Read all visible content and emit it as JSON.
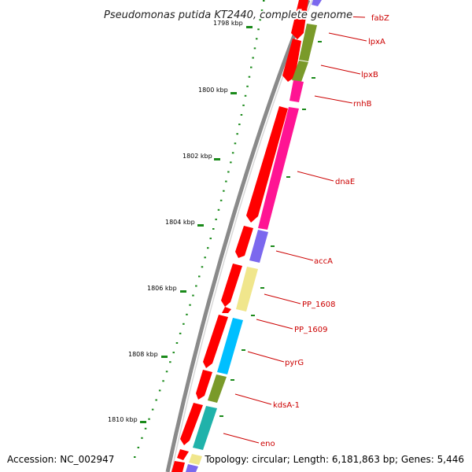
{
  "title": "Pseudomonas putida KT2440, complete genome",
  "footer": {
    "accession": "Accession: NC_002947",
    "topology": "Topology: circular; Length: 6,181,863 bp; Genes: 5,446"
  },
  "ticks": [
    {
      "kbp": 1798,
      "label": "1798 kbp"
    },
    {
      "kbp": 1800,
      "label": "1800 kbp"
    },
    {
      "kbp": 1802,
      "label": "1802 kbp"
    },
    {
      "kbp": 1804,
      "label": "1804 kbp"
    },
    {
      "kbp": 1806,
      "label": "1806 kbp"
    },
    {
      "kbp": 1808,
      "label": "1808 kbp"
    },
    {
      "kbp": 1810,
      "label": "1810 kbp"
    }
  ],
  "colors": {
    "forward": "#ff0000",
    "ticks": "#1a8a1a",
    "backbone": "#888888",
    "label": "#cc0000"
  },
  "genes": [
    {
      "name": "fabZ",
      "label": "fabZ",
      "color": "#7b68ee"
    },
    {
      "name": "lpxA",
      "label": "lpxA",
      "color": "#7a9a2a"
    },
    {
      "name": "lpxB",
      "label": "lpxB",
      "color": "#7a9a2a"
    },
    {
      "name": "rnhB",
      "label": "rnhB",
      "color": "#ff1493"
    },
    {
      "name": "dnaE",
      "label": "dnaE",
      "color": "#ff1493"
    },
    {
      "name": "accA",
      "label": "accA",
      "color": "#7b68ee"
    },
    {
      "name": "PP_1608",
      "label": "PP_1608",
      "color": "#f0e68c"
    },
    {
      "name": "PP_1609",
      "label": "PP_1609",
      "color": "#ff0000"
    },
    {
      "name": "pyrG",
      "label": "pyrG",
      "color": "#00bfff"
    },
    {
      "name": "kdsA-1",
      "label": "kdsA-1",
      "color": "#7a9a2a"
    },
    {
      "name": "eno",
      "label": "eno",
      "color": "#20b2aa"
    }
  ]
}
